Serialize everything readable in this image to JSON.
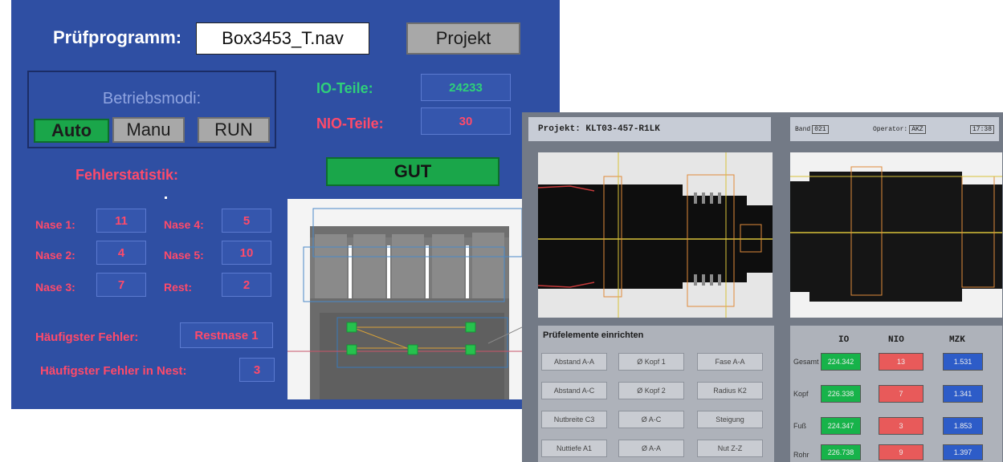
{
  "left_panel": {
    "program_label": "Prüfprogramm:",
    "program_value": "Box3453_T.nav",
    "project_button": "Projekt",
    "modes": {
      "title": "Betriebsmodi:",
      "auto": "Auto",
      "manu": "Manu",
      "run": "RUN"
    },
    "counts": {
      "io_label": "IO-Teile:",
      "io_value": "24233",
      "nio_label": "NIO-Teile:",
      "nio_value": "30"
    },
    "status": "GUT",
    "error_stats_title": "Fehlerstatistik:",
    "nests": [
      {
        "label": "Nase 1:",
        "value": "11"
      },
      {
        "label": "Nase 2:",
        "value": "4"
      },
      {
        "label": "Nase 3:",
        "value": "7"
      },
      {
        "label": "Nase 4:",
        "value": "5"
      },
      {
        "label": "Nase 5:",
        "value": "10"
      },
      {
        "label": "Rest:",
        "value": "2"
      }
    ],
    "most_common_error_label": "Häufigster Fehler:",
    "most_common_error_value": "Restnase 1",
    "most_common_nest_label": "Häufigster Fehler in Nest:",
    "most_common_nest_value": "3"
  },
  "right_panel": {
    "project": "Projekt: KLT03-457-R1LK",
    "band_label": "Band",
    "band_value": "021",
    "operator_label": "Operator:",
    "operator_value": "AKZ",
    "time": "17:38",
    "setup_title": "Prüfelemente einrichten",
    "setup_buttons": [
      [
        "Abstand A-A",
        "Ø Kopf 1",
        "Fase A-A"
      ],
      [
        "Abstand A-C",
        "Ø Kopf 2",
        "Radius K2"
      ],
      [
        "Nutbreite C3",
        "Ø A-C",
        "Steigung"
      ],
      [
        "Nuttiefe A1",
        "Ø A-A",
        "Nut Z-Z"
      ]
    ],
    "stats_headers": [
      "IO",
      "NIO",
      "MZK"
    ],
    "stats_rows": [
      {
        "label": "Gesamt",
        "io": "224.342",
        "nio": "13",
        "mzk": "1.531"
      },
      {
        "label": "Kopf",
        "io": "226.338",
        "nio": "7",
        "mzk": "1.341"
      },
      {
        "label": "Fuß",
        "io": "224.347",
        "nio": "3",
        "mzk": "1.853"
      },
      {
        "label": "Rohr",
        "io": "226.738",
        "nio": "9",
        "mzk": "1.397"
      }
    ],
    "colors": {
      "io": "#17b34a",
      "nio": "#e85a5a",
      "mzk": "#2d5cc8"
    }
  }
}
